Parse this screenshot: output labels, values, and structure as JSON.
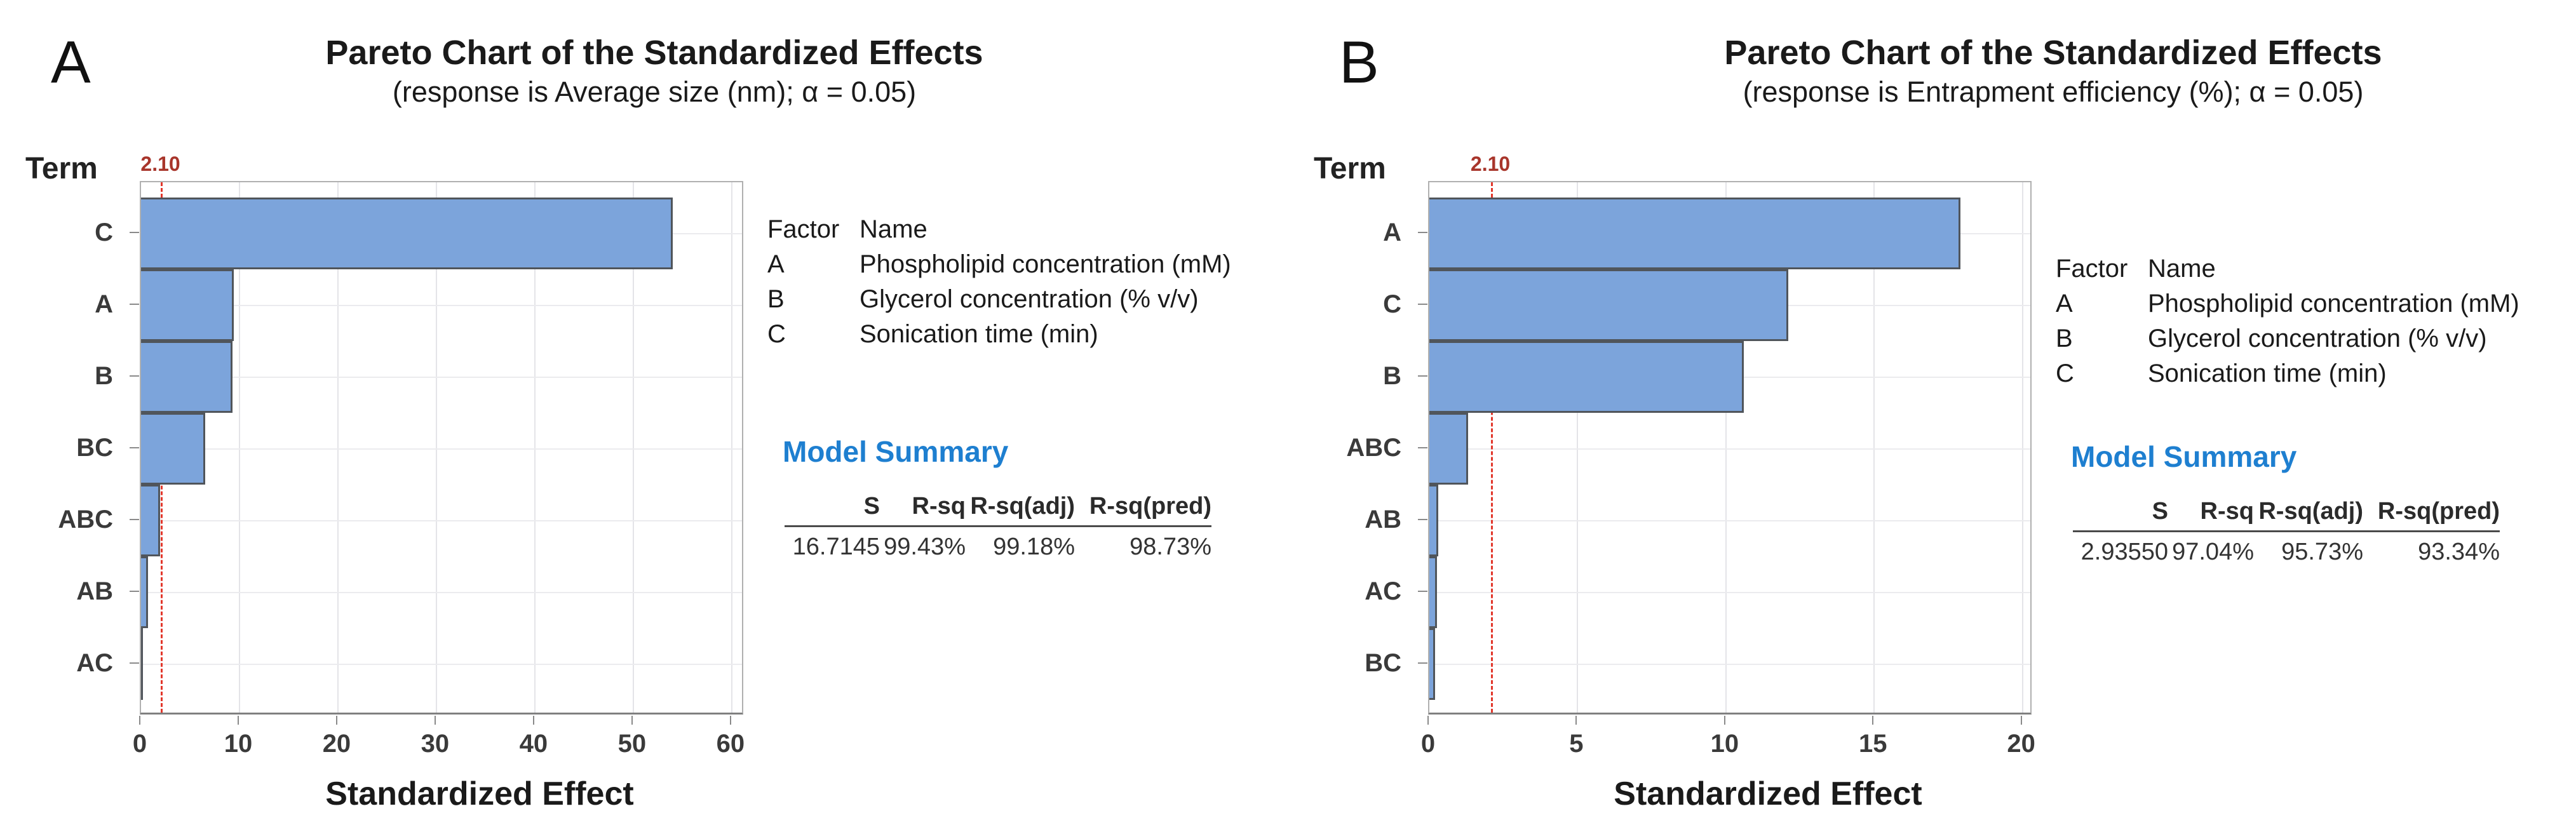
{
  "figure": {
    "background": "#ffffff"
  },
  "colors": {
    "bar_fill": "#7CA4DB",
    "bar_border": "#50555B",
    "gridline": "#E4E4E8",
    "plot_border": "#B0B0B0",
    "axis_line": "#808080",
    "reference_line": "#E2372B",
    "reference_label": "#A8352B",
    "model_summary_heading": "#1E7FD0",
    "text_primary": "#1A1A1A",
    "text_secondary": "#3A3A3A"
  },
  "chart_data": [
    {
      "type": "bar",
      "orientation": "horizontal",
      "panel_label": "A",
      "title": "Pareto Chart of the Standardized Effects",
      "subtitle": "(response is Average size (nm); α = 0.05)",
      "ylabel": "Term",
      "xlabel": "Standardized Effect",
      "categories": [
        "C",
        "A",
        "B",
        "BC",
        "ABC",
        "AB",
        "AC"
      ],
      "values": [
        54.0,
        9.4,
        9.3,
        6.5,
        1.95,
        0.7,
        0.08
      ],
      "x_axis": {
        "min": 0,
        "max": 61.3,
        "ticks": [
          0,
          10,
          20,
          30,
          40,
          50,
          60
        ]
      },
      "grid": true,
      "legend_position": "right",
      "reference_line": {
        "value": 2.1,
        "label": "2.10"
      },
      "factor_legend": {
        "col_headers": [
          "Factor",
          "Name"
        ],
        "rows": [
          [
            "A",
            "Phospholipid concentration (mM)"
          ],
          [
            "B",
            "Glycerol concentration (% v/v)"
          ],
          [
            "C",
            "Sonication time (min)"
          ]
        ]
      },
      "model_summary": {
        "heading": "Model Summary",
        "columns": [
          "S",
          "R-sq",
          "R-sq(adj)",
          "R-sq(pred)"
        ],
        "values": [
          "16.7145",
          "99.43%",
          "99.18%",
          "98.73%"
        ]
      }
    },
    {
      "type": "bar",
      "orientation": "horizontal",
      "panel_label": "B",
      "title": "Pareto Chart of the Standardized Effects",
      "subtitle": "(response is Entrapment efficiency (%); α = 0.05)",
      "ylabel": "Term",
      "xlabel": "Standardized Effect",
      "categories": [
        "A",
        "C",
        "B",
        "ABC",
        "AB",
        "AC",
        "BC"
      ],
      "values": [
        17.9,
        12.1,
        10.6,
        1.3,
        0.3,
        0.25,
        0.2
      ],
      "x_axis": {
        "min": 0,
        "max": 20.35,
        "ticks": [
          0,
          5,
          10,
          15,
          20
        ]
      },
      "grid": true,
      "legend_position": "right",
      "reference_line": {
        "value": 2.1,
        "label": "2.10"
      },
      "factor_legend": {
        "col_headers": [
          "Factor",
          "Name"
        ],
        "rows": [
          [
            "A",
            "Phospholipid concentration (mM)"
          ],
          [
            "B",
            "Glycerol concentration (% v/v)"
          ],
          [
            "C",
            "Sonication time (min)"
          ]
        ]
      },
      "model_summary": {
        "heading": "Model Summary",
        "columns": [
          "S",
          "R-sq",
          "R-sq(adj)",
          "R-sq(pred)"
        ],
        "values": [
          "2.93550",
          "97.04%",
          "95.73%",
          "93.34%"
        ]
      }
    }
  ]
}
